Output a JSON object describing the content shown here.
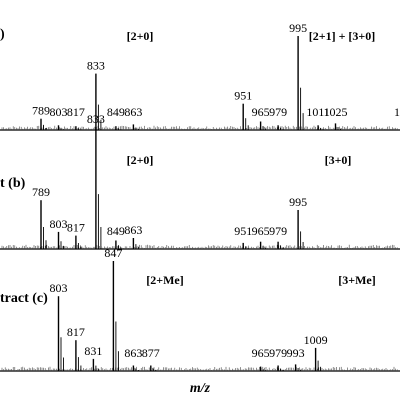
{
  "figure": {
    "xlabel": "m/z"
  },
  "chart_data": [
    {
      "type": "bar",
      "panel_label": ")",
      "group_labels": [
        "[2+0]",
        "[2+1] + [3+0]"
      ],
      "x": [
        789,
        803,
        817,
        833,
        849,
        863,
        951,
        965,
        979,
        995,
        1011,
        1025
      ],
      "values": [
        12,
        5,
        4,
        60,
        4,
        6,
        28,
        9,
        5,
        100,
        5,
        7
      ],
      "peak_labels": [
        "789",
        "803",
        "817",
        "833",
        "849",
        "863",
        "951",
        "965",
        "979",
        "995",
        "1011",
        "1025"
      ],
      "edge_label": "1",
      "xlabel": "m/z"
    },
    {
      "type": "bar",
      "panel_label": "t (b)",
      "group_labels": [
        "[2+0]",
        "[3+0]"
      ],
      "x": [
        789,
        803,
        817,
        833,
        849,
        863,
        951,
        965,
        979,
        995
      ],
      "values": [
        40,
        14,
        11,
        100,
        7,
        9,
        5,
        6,
        6,
        32
      ],
      "peak_labels": [
        "789",
        "803",
        "817",
        "833",
        "849",
        "863",
        "951",
        "965",
        "979",
        "995"
      ],
      "xlabel": "m/z"
    },
    {
      "type": "bar",
      "panel_label": "tract (c)",
      "group_labels": [
        "[2+Me]",
        "[3+Me]"
      ],
      "x": [
        803,
        817,
        831,
        847,
        863,
        877,
        965,
        979,
        993,
        1009
      ],
      "values": [
        68,
        28,
        11,
        100,
        5,
        5,
        4,
        5,
        6,
        21
      ],
      "peak_labels": [
        "803",
        "817",
        "831",
        "847",
        "863",
        "877",
        "965",
        "979",
        "993",
        "1009"
      ],
      "xlabel": "m/z"
    }
  ]
}
